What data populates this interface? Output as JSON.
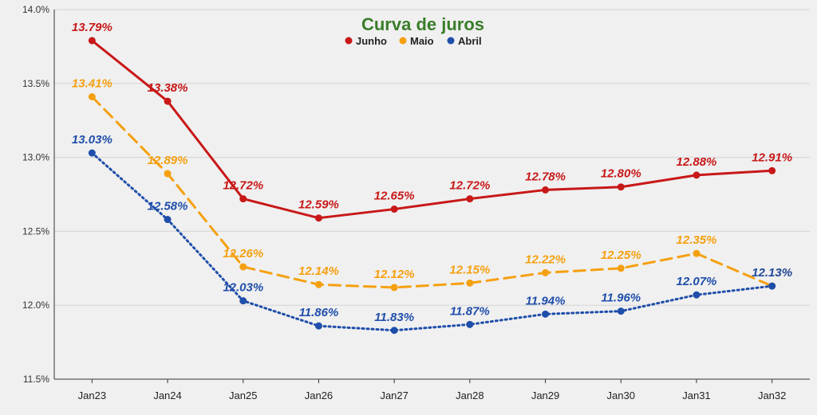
{
  "chart_data": {
    "type": "line",
    "title": "Curva de juros",
    "title_color": "#3a7d2a",
    "xlabel": "",
    "ylabel": "",
    "categories": [
      "Jan23",
      "Jan24",
      "Jan25",
      "Jan26",
      "Jan27",
      "Jan28",
      "Jan29",
      "Jan30",
      "Jan31",
      "Jan32"
    ],
    "ylim": [
      11.5,
      14.0
    ],
    "yticks": [
      11.5,
      12.0,
      12.5,
      13.0,
      13.5,
      14.0
    ],
    "ytick_labels": [
      "11.5%",
      "12.0%",
      "12.5%",
      "13.0%",
      "13.5%",
      "14.0%"
    ],
    "grid": "horizontal",
    "legend_position": "top-center",
    "series": [
      {
        "name": "Junho",
        "color": "#c81818",
        "line_style": "solid",
        "values": [
          13.79,
          13.38,
          12.72,
          12.59,
          12.65,
          12.72,
          12.78,
          12.8,
          12.88,
          12.91
        ],
        "labels": [
          "13.79%",
          "13.38%",
          "12.72%",
          "12.59%",
          "12.65%",
          "12.72%",
          "12.78%",
          "12.80%",
          "12.88%",
          "12.91%"
        ]
      },
      {
        "name": "Maio",
        "color": "#f5a010",
        "line_style": "dashed",
        "values": [
          13.41,
          12.89,
          12.26,
          12.14,
          12.12,
          12.15,
          12.22,
          12.25,
          12.35,
          12.13
        ],
        "labels": [
          "13.41%",
          "12.89%",
          "12.26%",
          "12.14%",
          "12.12%",
          "12.15%",
          "12.22%",
          "12.25%",
          "12.35%",
          "12.13%"
        ]
      },
      {
        "name": "Abril",
        "color": "#1f4eaa",
        "line_style": "dotted",
        "values": [
          13.03,
          12.58,
          12.03,
          11.86,
          11.83,
          11.87,
          11.94,
          11.96,
          12.07,
          12.13
        ],
        "labels": [
          "13.03%",
          "12.58%",
          "12.03%",
          "11.86%",
          "11.83%",
          "11.87%",
          "11.94%",
          "11.96%",
          "12.07%",
          "12.13%"
        ]
      }
    ]
  }
}
